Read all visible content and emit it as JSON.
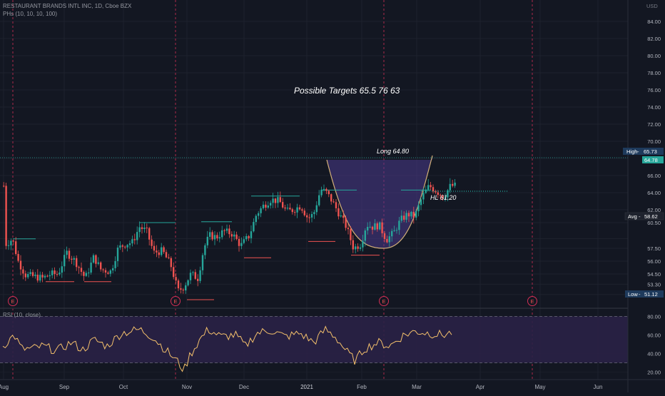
{
  "header": {
    "symbol_line": "RESTAURANT BRANDS INTL INC, 1D, Cboe BZX",
    "indicator_line": "PHs (10, 10, 10, 100)",
    "rsi_line": "RSI (10, close)"
  },
  "colors": {
    "background": "#131722",
    "grid": "#1e222d",
    "up": "#26a69a",
    "down": "#ef5350",
    "earnings_line": "#d32f56",
    "cup_fill": "#4a3a8c",
    "cup_stroke": "#d4b07a",
    "rsi_band": "#2a2146",
    "rsi_line": "#f5c16c",
    "high_label": "#1e3a5c",
    "last_label": "#26a69a"
  },
  "chart_data": [
    {
      "type": "candlestick",
      "currency": "USD",
      "y_ticks": [
        84.0,
        82.0,
        80.0,
        78.0,
        76.0,
        74.0,
        72.0,
        70.0,
        68.0,
        66.0,
        64.0,
        62.0,
        60.5,
        58.62,
        57.5,
        56.0,
        54.5,
        53.3,
        52.1
      ],
      "ylim": [
        50.5,
        86.5
      ],
      "x_labels": [
        "Aug",
        "Sep",
        "Oct",
        "Nov",
        "Dec",
        "2021",
        "Feb",
        "Mar",
        "Apr",
        "May",
        "Jun"
      ],
      "earnings_markers": [
        "E",
        "E",
        "E",
        "E"
      ],
      "price_labels": {
        "high": {
          "label": "High",
          "value": "65.73"
        },
        "last": {
          "value": "64.78"
        },
        "avg": {
          "label": "Avg",
          "value": "58.62"
        },
        "low": {
          "label": "Low",
          "value": "51.12"
        }
      },
      "annotations": {
        "targets": "Possible Targets  65.5    76   63",
        "long": "Long 64.80",
        "hl": "HL  61.20"
      }
    },
    {
      "type": "line",
      "name": "RSI (10, close)",
      "y_ticks": [
        80.0,
        60.0,
        40.0,
        20.0
      ],
      "ylim": [
        12,
        88
      ],
      "bands": [
        80,
        30
      ]
    }
  ]
}
